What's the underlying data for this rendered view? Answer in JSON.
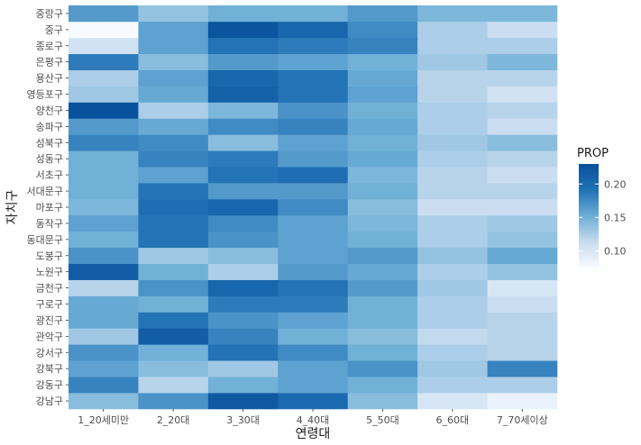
{
  "chart_data": {
    "type": "heatmap",
    "title": "",
    "xlabel": "연령대",
    "ylabel": "자치구",
    "x_categories": [
      "1_20세미만",
      "2_20대",
      "3_30대",
      "4_40대",
      "5_50대",
      "6_60대",
      "7_70세이상"
    ],
    "y_categories": [
      "강남구",
      "강동구",
      "강북구",
      "강서구",
      "관악구",
      "광진구",
      "구로구",
      "금천구",
      "노원구",
      "도봉구",
      "동대문구",
      "동작구",
      "마포구",
      "서대문구",
      "서초구",
      "성동구",
      "성북구",
      "송파구",
      "양천구",
      "영등포구",
      "용산구",
      "은평구",
      "종로구",
      "중구",
      "중랑구"
    ],
    "values": [
      [
        0.14,
        0.17,
        0.22,
        0.2,
        0.14,
        0.1,
        0.085
      ],
      [
        0.18,
        0.12,
        0.15,
        0.16,
        0.15,
        0.125,
        0.125
      ],
      [
        0.16,
        0.14,
        0.13,
        0.16,
        0.17,
        0.13,
        0.18
      ],
      [
        0.17,
        0.15,
        0.19,
        0.175,
        0.15,
        0.125,
        0.12
      ],
      [
        0.13,
        0.215,
        0.18,
        0.15,
        0.14,
        0.115,
        0.12
      ],
      [
        0.155,
        0.19,
        0.17,
        0.16,
        0.15,
        0.125,
        0.12
      ],
      [
        0.155,
        0.15,
        0.185,
        0.185,
        0.15,
        0.125,
        0.11
      ],
      [
        0.12,
        0.17,
        0.205,
        0.19,
        0.165,
        0.13,
        0.1
      ],
      [
        0.215,
        0.15,
        0.125,
        0.165,
        0.155,
        0.125,
        0.135
      ],
      [
        0.17,
        0.13,
        0.14,
        0.16,
        0.165,
        0.135,
        0.155
      ],
      [
        0.15,
        0.19,
        0.17,
        0.16,
        0.15,
        0.125,
        0.135
      ],
      [
        0.16,
        0.19,
        0.175,
        0.16,
        0.145,
        0.125,
        0.13
      ],
      [
        0.145,
        0.195,
        0.205,
        0.175,
        0.14,
        0.11,
        0.11
      ],
      [
        0.15,
        0.19,
        0.165,
        0.165,
        0.15,
        0.12,
        0.12
      ],
      [
        0.15,
        0.16,
        0.19,
        0.195,
        0.145,
        0.12,
        0.11
      ],
      [
        0.15,
        0.18,
        0.185,
        0.165,
        0.155,
        0.125,
        0.12
      ],
      [
        0.18,
        0.175,
        0.14,
        0.16,
        0.15,
        0.13,
        0.14
      ],
      [
        0.165,
        0.155,
        0.175,
        0.18,
        0.155,
        0.125,
        0.11
      ],
      [
        0.23,
        0.125,
        0.145,
        0.17,
        0.15,
        0.125,
        0.12
      ],
      [
        0.13,
        0.155,
        0.21,
        0.19,
        0.16,
        0.12,
        0.105
      ],
      [
        0.125,
        0.16,
        0.205,
        0.19,
        0.155,
        0.12,
        0.12
      ],
      [
        0.185,
        0.14,
        0.165,
        0.16,
        0.15,
        0.13,
        0.145
      ],
      [
        0.105,
        0.16,
        0.19,
        0.185,
        0.18,
        0.125,
        0.125
      ],
      [
        0.075,
        0.16,
        0.225,
        0.205,
        0.175,
        0.125,
        0.11
      ],
      [
        0.165,
        0.135,
        0.15,
        0.15,
        0.165,
        0.145,
        0.145
      ]
    ],
    "legend": {
      "title": "PROP",
      "ticks": [
        0.1,
        0.15,
        0.2
      ],
      "tick_labels": [
        "0.10",
        "0.15",
        "0.20"
      ],
      "range": [
        0.075,
        0.23
      ],
      "position": "right"
    },
    "colors": {
      "low": "#f7fbff",
      "mid1": "#c6dbef",
      "mid2": "#6baed6",
      "mid3": "#2171b5",
      "high": "#08519c",
      "panel_bg": "#ebebeb",
      "grid": "#ffffff"
    },
    "grid": true
  }
}
